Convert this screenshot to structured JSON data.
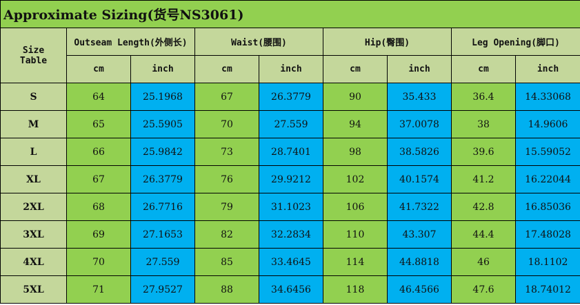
{
  "title": "Approximate Sizing(货号NS3061)",
  "size_header": "Size Table",
  "groups": [
    "Outseam Length(外侧长)",
    "Waist(腰围)",
    "Hip(臀围)",
    "Leg Opening(脚口)"
  ],
  "units": [
    "cm",
    "inch"
  ],
  "colors": {
    "title": "#92d050",
    "header": "#c4d79b",
    "cm_cell": "#92d050",
    "inch_cell": "#00b0f0"
  },
  "rows": [
    [
      "S",
      "64",
      "25.1968",
      "67",
      "26.3779",
      "90",
      "35.433",
      "36.4",
      "14.33068"
    ],
    [
      "M",
      "65",
      "25.5905",
      "70",
      "27.559",
      "94",
      "37.0078",
      "38",
      "14.9606"
    ],
    [
      "L",
      "66",
      "25.9842",
      "73",
      "28.7401",
      "98",
      "38.5826",
      "39.6",
      "15.59052"
    ],
    [
      "XL",
      "67",
      "26.3779",
      "76",
      "29.9212",
      "102",
      "40.1574",
      "41.2",
      "16.22044"
    ],
    [
      "2XL",
      "68",
      "26.7716",
      "79",
      "31.1023",
      "106",
      "41.7322",
      "42.8",
      "16.85036"
    ],
    [
      "3XL",
      "69",
      "27.1653",
      "82",
      "32.2834",
      "110",
      "43.307",
      "44.4",
      "17.48028"
    ],
    [
      "4XL",
      "70",
      "27.559",
      "85",
      "33.4645",
      "114",
      "44.8818",
      "46",
      "18.1102"
    ],
    [
      "5XL",
      "71",
      "27.9527",
      "88",
      "34.6456",
      "118",
      "46.4566",
      "47.6",
      "18.74012"
    ]
  ]
}
